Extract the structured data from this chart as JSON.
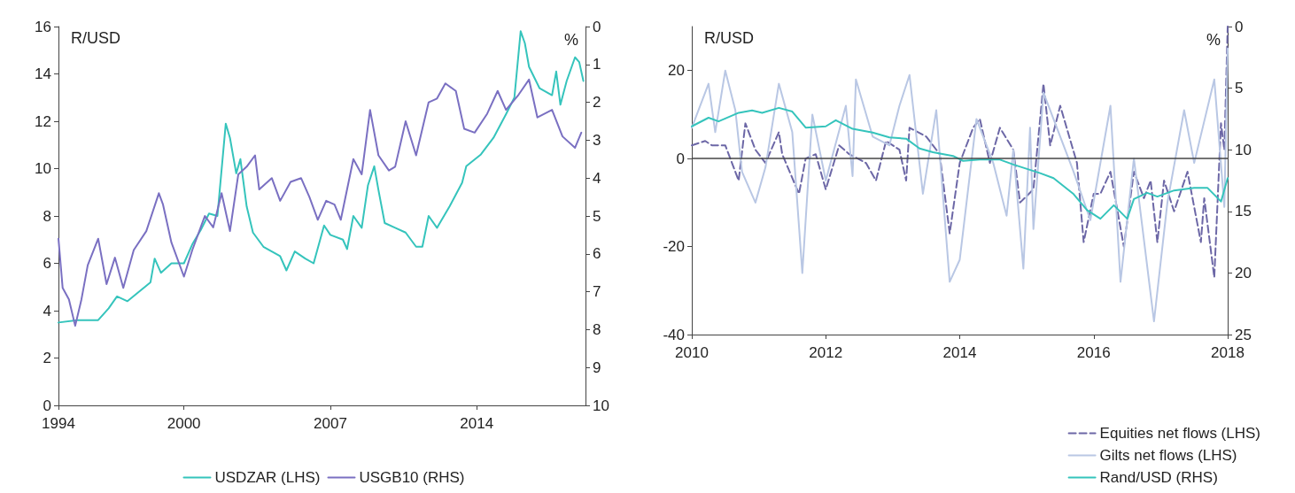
{
  "chart_data": [
    {
      "type": "line",
      "ylabel": "R/USD",
      "y2label": "%",
      "xlim": [
        1994,
        2019.2
      ],
      "xticks": [
        1994,
        2000,
        2007,
        2014
      ],
      "ylim": [
        0,
        16
      ],
      "yticks": [
        0,
        2,
        4,
        6,
        8,
        10,
        12,
        14,
        16
      ],
      "y2lim": [
        10,
        0
      ],
      "y2ticks": [
        0,
        1,
        2,
        3,
        4,
        5,
        6,
        7,
        8,
        9,
        10
      ],
      "grid": false,
      "legend": "bottom",
      "marker": "none",
      "series": [
        {
          "name": "USDZAR (LHS)",
          "color": "#35c4bc",
          "line_style": "solid",
          "x": [
            1994,
            1994.9,
            1995.9,
            1996.4,
            1996.8,
            1997.3,
            1998.4,
            1998.6,
            1998.9,
            1999.4,
            2000,
            2000.4,
            2000.8,
            2001.2,
            2001.6,
            2002,
            2002.2,
            2002.5,
            2002.7,
            2003,
            2003.3,
            2003.8,
            2004.2,
            2004.6,
            2004.9,
            2005.3,
            2005.8,
            2006.2,
            2006.7,
            2007,
            2007.6,
            2007.8,
            2008.1,
            2008.5,
            2008.8,
            2009.1,
            2009.3,
            2009.6,
            2010.1,
            2010.6,
            2011.1,
            2011.4,
            2011.7,
            2012.1,
            2012.7,
            2013.3,
            2013.5,
            2014.2,
            2014.8,
            2015.4,
            2015.8,
            2016.1,
            2016.3,
            2016.5,
            2017,
            2017.6,
            2017.8,
            2018,
            2018.3,
            2018.7,
            2018.9,
            2019.1
          ],
          "values": [
            3.5,
            3.6,
            3.6,
            4.1,
            4.6,
            4.4,
            5.2,
            6.2,
            5.6,
            6,
            6,
            6.8,
            7.4,
            8.1,
            8,
            11.9,
            11.3,
            9.8,
            10.4,
            8.4,
            7.3,
            6.7,
            6.5,
            6.3,
            5.7,
            6.5,
            6.2,
            6,
            7.6,
            7.2,
            7,
            6.6,
            8,
            7.5,
            9.3,
            10.1,
            9.1,
            7.7,
            7.5,
            7.3,
            6.7,
            6.7,
            8,
            7.5,
            8.4,
            9.4,
            10.1,
            10.6,
            11.3,
            12.3,
            13,
            15.8,
            15.3,
            14.3,
            13.4,
            13.1,
            14.1,
            12.7,
            13.7,
            14.7,
            14.5,
            13.7
          ]
        },
        {
          "name": "USGB10 (RHS)",
          "color": "#7a70c2",
          "line_style": "solid",
          "axis": "y2",
          "x": [
            1994,
            1994.2,
            1994.5,
            1994.8,
            1995.1,
            1995.4,
            1995.9,
            1996.3,
            1996.7,
            1997.1,
            1997.6,
            1998.2,
            1998.8,
            1999,
            1999.4,
            2000,
            2000.4,
            2001,
            2001.4,
            2001.8,
            2002.2,
            2002.6,
            2003,
            2003.4,
            2003.6,
            2004.2,
            2004.6,
            2005.1,
            2005.6,
            2006,
            2006.4,
            2006.8,
            2007.2,
            2007.5,
            2008.1,
            2008.5,
            2008.9,
            2009.3,
            2009.8,
            2010.1,
            2010.6,
            2011.1,
            2011.7,
            2012.1,
            2012.5,
            2013,
            2013.4,
            2013.9,
            2014.5,
            2015,
            2015.4,
            2016,
            2016.5,
            2016.9,
            2017.6,
            2018.1,
            2018.7,
            2019
          ],
          "values": [
            5.6,
            6.9,
            7.2,
            7.9,
            7.2,
            6.3,
            5.6,
            6.8,
            6.1,
            6.9,
            5.9,
            5.4,
            4.4,
            4.7,
            5.7,
            6.6,
            5.9,
            5,
            5.3,
            4.4,
            5.4,
            3.9,
            3.7,
            3.4,
            4.3,
            4,
            4.6,
            4.1,
            4,
            4.5,
            5.1,
            4.6,
            4.7,
            5.1,
            3.5,
            3.9,
            2.2,
            3.4,
            3.8,
            3.7,
            2.5,
            3.4,
            2,
            1.9,
            1.5,
            1.7,
            2.7,
            2.8,
            2.3,
            1.7,
            2.2,
            1.8,
            1.4,
            2.4,
            2.2,
            2.9,
            3.2,
            2.8
          ]
        }
      ]
    },
    {
      "type": "line",
      "ylabel": "R/USD",
      "y2label": "%",
      "xlim": [
        2010,
        2018
      ],
      "xticks": [
        2010,
        2012,
        2014,
        2016,
        2018
      ],
      "ylim": [
        -40,
        30
      ],
      "yticks": [
        -40,
        -20,
        0,
        20
      ],
      "y2lim": [
        25,
        0
      ],
      "y2ticks": [
        0,
        5,
        10,
        15,
        20,
        25
      ],
      "grid": false,
      "legend": "bottom right",
      "marker": "none",
      "ref_lines": [
        {
          "axis": "y",
          "value": 0,
          "color": "#444444"
        }
      ],
      "series": [
        {
          "name": "Equities net flows (LHS)",
          "color": "#6c67a6",
          "line_style": "dashed",
          "x": [
            2010,
            2010.2,
            2010.3,
            2010.5,
            2010.7,
            2010.8,
            2010.95,
            2011.1,
            2011.3,
            2011.35,
            2011.6,
            2011.7,
            2011.85,
            2012,
            2012.2,
            2012.35,
            2012.6,
            2012.75,
            2012.9,
            2013.1,
            2013.2,
            2013.25,
            2013.5,
            2013.7,
            2013.85,
            2014,
            2014.2,
            2014.3,
            2014.45,
            2014.6,
            2014.8,
            2014.9,
            2015.1,
            2015.25,
            2015.35,
            2015.5,
            2015.75,
            2015.85,
            2016,
            2016.1,
            2016.25,
            2016.45,
            2016.6,
            2016.75,
            2016.85,
            2016.95,
            2017.05,
            2017.2,
            2017.4,
            2017.6,
            2017.65,
            2017.8,
            2017.9,
            2017.95,
            2018
          ],
          "values": [
            3,
            4,
            3,
            3,
            -5,
            8,
            2,
            -1,
            6,
            1,
            -8,
            0,
            1,
            -7,
            3,
            1,
            -1,
            -5,
            4,
            2,
            -5,
            7,
            5,
            1,
            -17,
            -1,
            7,
            9,
            -1,
            7,
            2,
            -10,
            -7,
            17,
            3,
            12,
            -1,
            -19,
            -8,
            -8,
            -3,
            -20,
            -3,
            -9,
            -5,
            -19,
            -5,
            -12,
            -3,
            -19,
            -9,
            -27,
            8,
            2,
            30
          ]
        },
        {
          "name": "Gilts net flows (LHS)",
          "color": "#b9c7e4",
          "line_style": "solid",
          "x": [
            2010,
            2010.25,
            2010.35,
            2010.5,
            2010.65,
            2010.75,
            2010.95,
            2011.1,
            2011.3,
            2011.5,
            2011.65,
            2011.8,
            2012,
            2012.3,
            2012.4,
            2012.45,
            2012.7,
            2012.95,
            2013.1,
            2013.25,
            2013.45,
            2013.65,
            2013.85,
            2014,
            2014.25,
            2014.5,
            2014.7,
            2014.8,
            2014.95,
            2015.05,
            2015.1,
            2015.25,
            2015.7,
            2015.95,
            2016.25,
            2016.4,
            2016.6,
            2016.9,
            2017.1,
            2017.35,
            2017.5,
            2017.8,
            2017.95,
            2018
          ],
          "values": [
            7,
            17,
            6,
            20,
            11,
            -3,
            -10,
            -2,
            17,
            6,
            -26,
            10,
            -5,
            12,
            -4,
            18,
            5,
            3,
            12,
            19,
            -8,
            11,
            -28,
            -23,
            9,
            -1,
            -13,
            2,
            -25,
            7,
            -16,
            15,
            -3,
            -14,
            12,
            -28,
            0,
            -37,
            -10,
            11,
            -1,
            18,
            -11,
            25
          ]
        },
        {
          "name": "Rand/USD (RHS)",
          "color": "#35c4bc",
          "line_style": "solid",
          "axis": "y2",
          "x": [
            2010,
            2010.25,
            2010.4,
            2010.7,
            2010.9,
            2011.05,
            2011.3,
            2011.5,
            2011.7,
            2012,
            2012.15,
            2012.4,
            2012.7,
            2012.95,
            2013.2,
            2013.4,
            2013.6,
            2013.9,
            2014.05,
            2014.3,
            2014.6,
            2014.8,
            2015.2,
            2015.4,
            2015.7,
            2015.9,
            2016.1,
            2016.3,
            2016.5,
            2016.6,
            2016.8,
            2016.95,
            2017.2,
            2017.5,
            2017.7,
            2017.9,
            2018
          ],
          "values": [
            8.1,
            7.4,
            7.7,
            7,
            6.8,
            7,
            6.6,
            6.9,
            8.2,
            8.1,
            7.6,
            8.3,
            8.6,
            9,
            9.1,
            9.9,
            10.2,
            10.5,
            10.9,
            10.8,
            10.8,
            11.2,
            11.9,
            12.3,
            13.6,
            14.9,
            15.6,
            14.5,
            15.6,
            14,
            13.5,
            13.8,
            13.3,
            13.1,
            13.1,
            14.2,
            12.3
          ]
        }
      ]
    }
  ]
}
